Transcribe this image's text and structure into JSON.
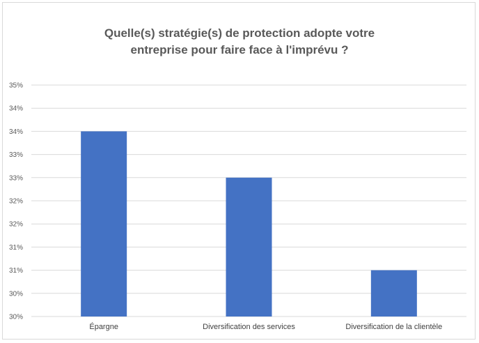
{
  "chart_data": {
    "type": "bar",
    "title_lines": [
      "Quelle(s) stratégie(s) de protection adopte votre",
      "entreprise pour faire face à l'imprévu ?"
    ],
    "categories": [
      "Épargne",
      "Diversification des services",
      "Diversification de la clientèle"
    ],
    "values": [
      34,
      33,
      31
    ],
    "ytick_labels": [
      "30%",
      "30%",
      "31%",
      "31%",
      "32%",
      "32%",
      "33%",
      "33%",
      "34%",
      "34%",
      "35%"
    ],
    "ylim": [
      30,
      35
    ],
    "grid": true,
    "bar_color": "#4472c4",
    "gridline_color": "#d9d9d9",
    "legend": "none"
  }
}
